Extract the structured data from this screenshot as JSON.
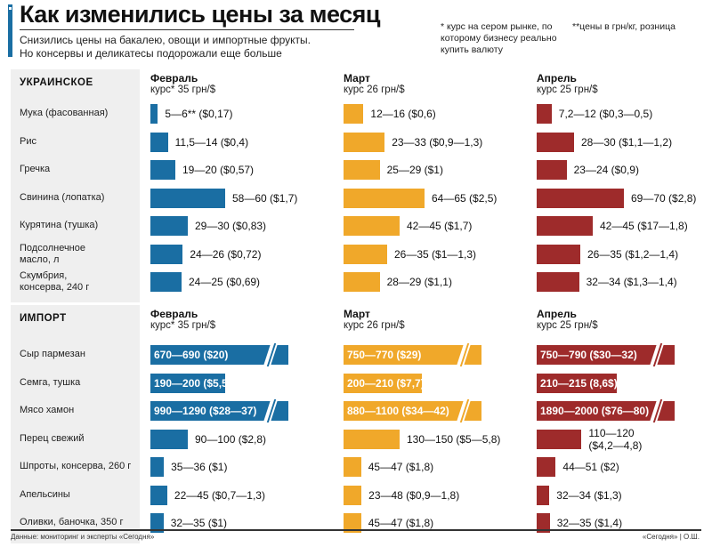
{
  "header": {
    "title": "Как изменились цены за месяц",
    "subtitle_line1": "Снизились цены на бакалею, овощи и импортные фрукты.",
    "subtitle_line2": "Но консервы и деликатесы подорожали еще больше",
    "note1": "* курс на сером рынке, по которому бизнесу реально купить валюту",
    "note2": "**цены в грн/кг, розница"
  },
  "footer": {
    "source": "Данные: мониторинг и эксперты «Сегодня»",
    "credit": "«Сегодня» | О.Ш."
  },
  "colors": {
    "feb": "#1a6ea3",
    "mar": "#f0a82a",
    "apr": "#9e2b2b"
  },
  "chart_data": [
    {
      "type": "bar",
      "title": "УКРАИНСКОЕ",
      "unit": "грн/кг",
      "months": [
        {
          "name": "Февраль",
          "rate": "курс* 35 грн/$"
        },
        {
          "name": "Март",
          "rate": "курс 26 грн/$"
        },
        {
          "name": "Апрель",
          "rate": "курс 25 грн/$"
        }
      ],
      "categories": [
        "Мука (фасованная)",
        "Рис",
        "Гречка",
        "Свинина (лопатка)",
        "Курятина (тушка)",
        "Подсолнечное масло, л",
        "Скумбрия, консерва, 240 г"
      ],
      "series": [
        {
          "name": "Февраль",
          "values": [
            6,
            14,
            20,
            60,
            30,
            26,
            25
          ],
          "labels": [
            "5—6** ($0,17)",
            "11,5—14 ($0,4)",
            "19—20 ($0,57)",
            "58—60 ($1,7)",
            "29—30 ($0,83)",
            "24—26 ($0,72)",
            "24—25 ($0,69)"
          ]
        },
        {
          "name": "Март",
          "values": [
            16,
            33,
            29,
            65,
            45,
            35,
            29
          ],
          "labels": [
            "12—16 ($0,6)",
            "23—33 ($0,9—1,3)",
            "25—29 ($1)",
            "64—65 ($2,5)",
            "42—45 ($1,7)",
            "26—35 ($1—1,3)",
            "28—29 ($1,1)"
          ]
        },
        {
          "name": "Апрель",
          "values": [
            12,
            30,
            24,
            70,
            45,
            35,
            34
          ],
          "labels": [
            "7,2—12 ($0,3—0,5)",
            "28—30 ($1,1—1,2)",
            "23—24 ($0,9)",
            "69—70 ($2,8)",
            "42—45 ($17—1,8)",
            "26—35 ($1,2—1,4)",
            "32—34 ($1,3—1,4)"
          ]
        }
      ]
    },
    {
      "type": "bar",
      "title": "ИМПОРТ",
      "unit": "грн/кг",
      "months": [
        {
          "name": "Февраль",
          "rate": "курс* 35 грн/$"
        },
        {
          "name": "Март",
          "rate": "курс 26 грн/$"
        },
        {
          "name": "Апрель",
          "rate": "курс 25 грн/$"
        }
      ],
      "categories": [
        "Сыр пармезан",
        "Семга, тушка",
        "Мясо хамон",
        "Перец свежий",
        "Шпроты, консерва, 260 г",
        "Апельсины",
        "Оливки, баночка, 350 г"
      ],
      "series": [
        {
          "name": "Февраль",
          "values": [
            690,
            200,
            1290,
            100,
            36,
            45,
            35
          ],
          "labels": [
            "670—690 ($20)",
            "190—200 ($5,5)",
            "990—1290 ($28—37)",
            "90—100 ($2,8)",
            "35—36 ($1)",
            "22—45 ($0,7—1,3)",
            "32—35 ($1)"
          ],
          "broken": [
            true,
            false,
            true,
            false,
            false,
            false,
            false
          ]
        },
        {
          "name": "Март",
          "values": [
            770,
            210,
            1100,
            150,
            47,
            48,
            47
          ],
          "labels": [
            "750—770 ($29)",
            "200—210 ($7,7)",
            "880—1100 ($34—42)",
            "130—150 ($5—5,8)",
            "45—47 ($1,8)",
            "23—48 ($0,9—1,8)",
            "45—47 ($1,8)"
          ],
          "broken": [
            true,
            false,
            true,
            false,
            false,
            false,
            false
          ]
        },
        {
          "name": "Апрель",
          "values": [
            790,
            215,
            2000,
            120,
            51,
            34,
            35
          ],
          "labels": [
            "750—790 ($30—32)",
            "210—215 (8,6$)",
            "1890—2000 ($76—80)",
            "110—120 ($4,2—4,8)",
            "44—51 ($2)",
            "32—34 ($1,3)",
            "32—35 ($1,4)"
          ],
          "broken": [
            true,
            false,
            true,
            false,
            false,
            false,
            false
          ]
        }
      ]
    }
  ]
}
